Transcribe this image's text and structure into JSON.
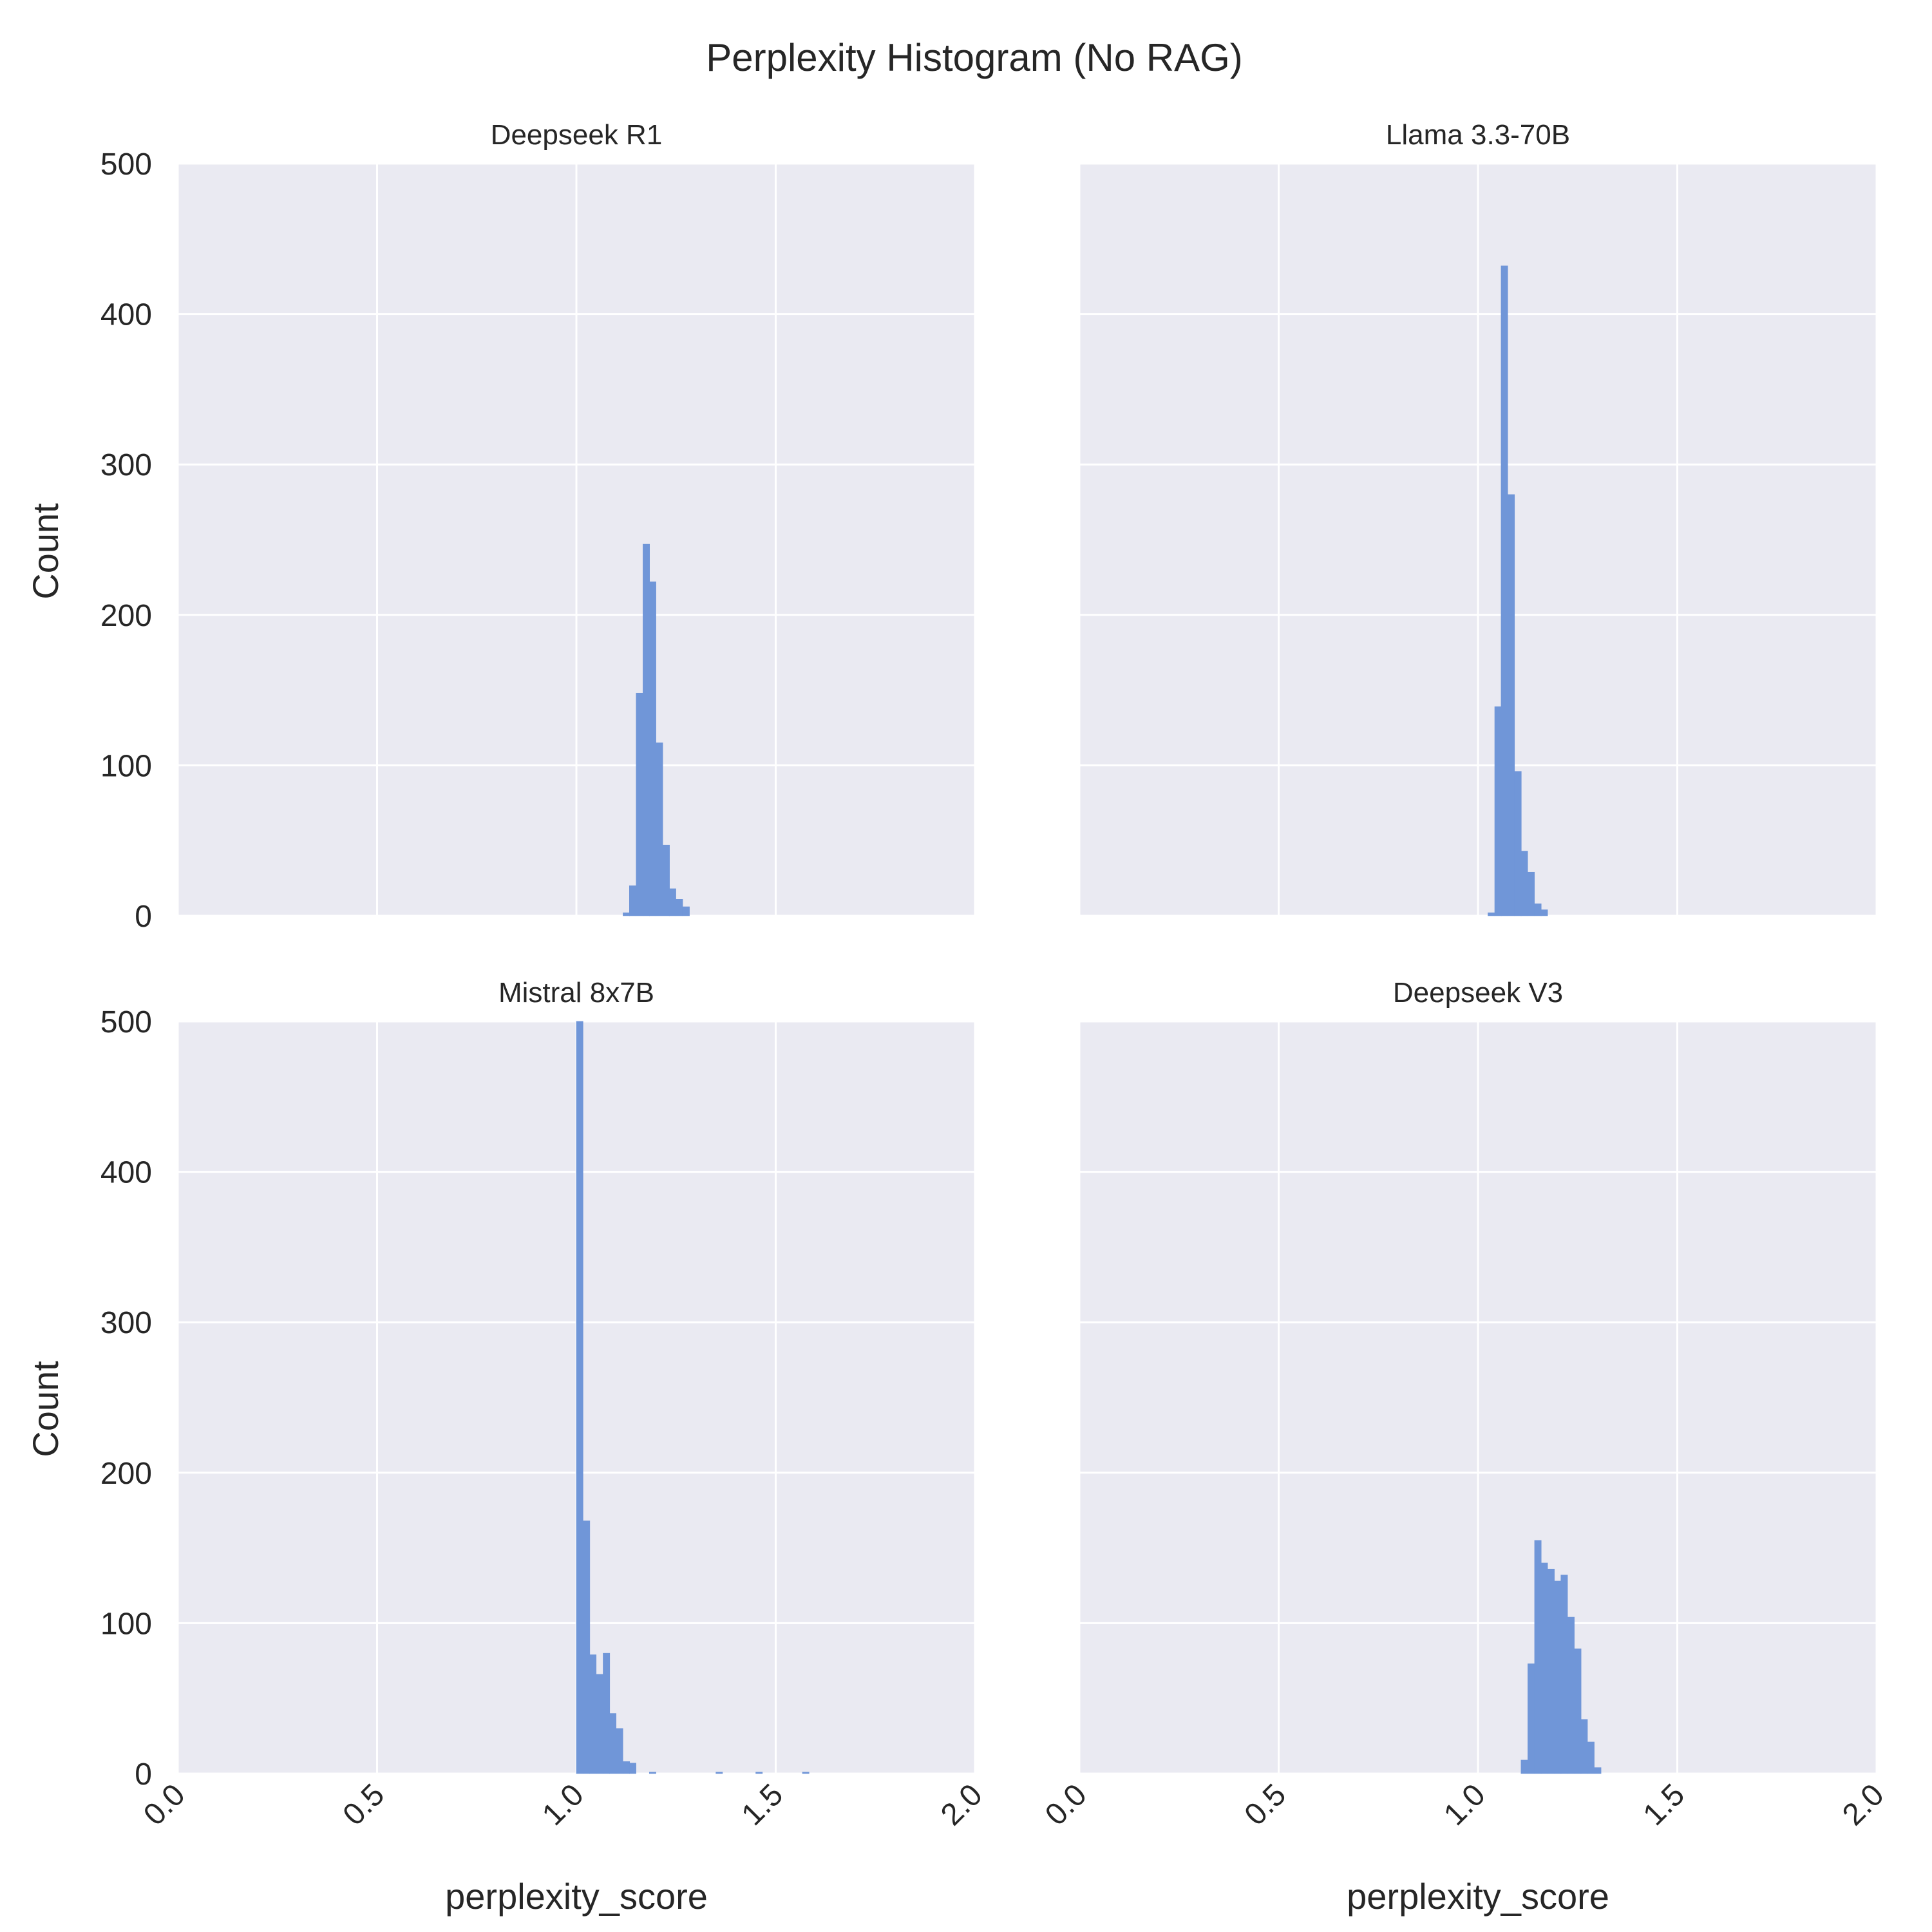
{
  "figure": {
    "title": "Perplexity Histogram (No RAG)"
  },
  "colors": {
    "panel_background": "#eaeaf2",
    "grid": "#ffffff",
    "bar_fill": "#7096d8",
    "text": "#262626"
  },
  "chart_data": [
    {
      "type": "bar",
      "title": "Deepseek R1",
      "xlabel": "",
      "ylabel": "Count",
      "xlim": [
        0,
        2
      ],
      "ylim": [
        0,
        500
      ],
      "xticks": [
        "0.0",
        "0.5",
        "1.0",
        "1.5",
        "2.0"
      ],
      "yticks": [
        "0",
        "100",
        "200",
        "300",
        "400",
        "500"
      ],
      "grid": true,
      "bin_width": 0.0167,
      "bins_start": [
        1.117,
        1.133,
        1.15,
        1.167,
        1.183,
        1.2,
        1.217,
        1.233,
        1.25,
        1.267
      ],
      "values": [
        2,
        20,
        148,
        247,
        222,
        115,
        47,
        18,
        11,
        6
      ]
    },
    {
      "type": "bar",
      "title": "Llama 3.3-70B",
      "xlabel": "",
      "ylabel": "",
      "xlim": [
        0,
        2
      ],
      "ylim": [
        0,
        500
      ],
      "xticks": [
        "0.0",
        "0.5",
        "1.0",
        "1.5",
        "2.0"
      ],
      "yticks": [
        "0",
        "100",
        "200",
        "300",
        "400",
        "500"
      ],
      "grid": true,
      "bin_width": 0.0167,
      "bins_start": [
        1.025,
        1.042,
        1.058,
        1.075,
        1.092,
        1.108,
        1.125,
        1.142,
        1.158
      ],
      "values": [
        2,
        139,
        432,
        280,
        96,
        43,
        29,
        8,
        4
      ]
    },
    {
      "type": "bar",
      "title": "Mistral 8x7B",
      "xlabel": "perplexity_score",
      "ylabel": "Count",
      "xlim": [
        0,
        2
      ],
      "ylim": [
        0,
        500
      ],
      "xticks": [
        "0.0",
        "0.5",
        "1.0",
        "1.5",
        "2.0"
      ],
      "yticks": [
        "0",
        "100",
        "200",
        "300",
        "400",
        "500"
      ],
      "grid": true,
      "bin_width": 0.0167,
      "bins_start": [
        1.0,
        1.017,
        1.033,
        1.05,
        1.067,
        1.083,
        1.1,
        1.117,
        1.133,
        1.183,
        1.35,
        1.45,
        1.567
      ],
      "values": [
        500,
        168,
        79,
        66,
        80,
        40,
        30,
        8,
        7,
        1,
        1,
        1,
        1
      ]
    },
    {
      "type": "bar",
      "title": "Deepseek V3",
      "xlabel": "perplexity_score",
      "ylabel": "",
      "xlim": [
        0,
        2
      ],
      "ylim": [
        0,
        500
      ],
      "xticks": [
        "0.0",
        "0.5",
        "1.0",
        "1.5",
        "2.0"
      ],
      "yticks": [
        "0",
        "100",
        "200",
        "300",
        "400",
        "500"
      ],
      "grid": true,
      "bin_width": 0.0167,
      "bins_start": [
        1.108,
        1.125,
        1.142,
        1.158,
        1.175,
        1.192,
        1.208,
        1.225,
        1.242,
        1.258,
        1.275,
        1.292
      ],
      "values": [
        9,
        73,
        155,
        140,
        136,
        128,
        132,
        104,
        83,
        36,
        21,
        4
      ]
    }
  ]
}
